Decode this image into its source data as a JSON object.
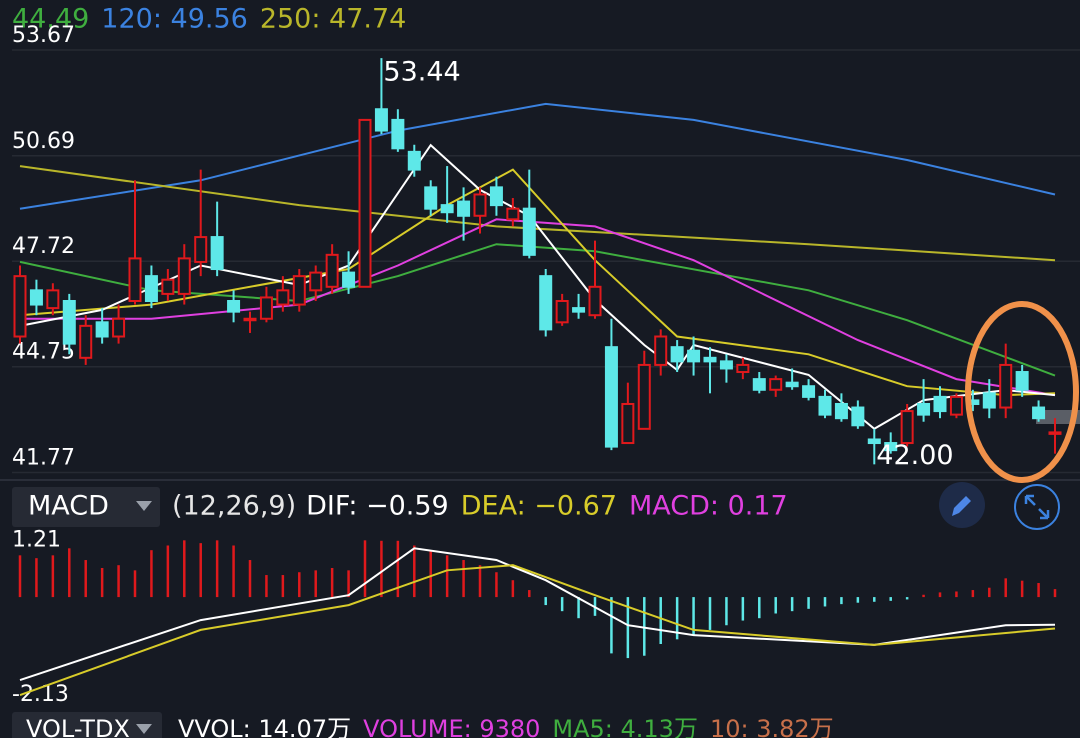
{
  "chart_data": [
    {
      "type": "candlestick",
      "legend": [
        {
          "label": "44.49",
          "color": "#3fae3f"
        },
        {
          "label": "120: 49.56",
          "color": "#3b82e0"
        },
        {
          "label": "250: 47.74",
          "color": "#b9b62a"
        }
      ],
      "open": [
        45.6,
        46.9,
        46.4,
        46.6,
        45.0,
        46.0,
        45.6,
        46.6,
        47.3,
        46.8,
        46.8,
        47.7,
        48.4,
        46.6,
        46.1,
        46.1,
        46.5,
        46.5,
        46.9,
        47.0,
        47.4,
        47.0,
        52.0,
        51.7,
        50.8,
        49.8,
        49.3,
        49.4,
        49.0,
        49.8,
        48.9,
        49.2,
        47.3,
        46.0,
        46.4,
        46.2,
        45.3,
        42.6,
        43.0,
        44.8,
        45.3,
        45.2,
        45.0,
        44.9,
        44.6,
        44.4,
        44.1,
        44.3,
        44.2,
        43.9,
        43.7,
        43.6,
        42.7,
        42.6,
        42.6,
        43.7,
        43.9,
        43.4,
        43.8,
        44.0,
        43.6,
        44.6,
        43.6,
        42.9
      ],
      "high": [
        47.6,
        47.2,
        47.1,
        46.8,
        46.2,
        46.4,
        46.5,
        50.0,
        47.6,
        47.5,
        48.2,
        50.3,
        49.4,
        46.9,
        46.3,
        47.0,
        47.3,
        47.5,
        47.6,
        48.2,
        48.0,
        51.7,
        53.44,
        52.0,
        51.0,
        50.0,
        50.4,
        49.8,
        49.8,
        50.1,
        49.5,
        50.3,
        47.5,
        46.8,
        46.8,
        48.3,
        46.1,
        44.3,
        45.2,
        45.8,
        45.5,
        45.6,
        45.3,
        45.1,
        45.0,
        44.6,
        44.5,
        44.7,
        44.4,
        44.1,
        44.0,
        43.8,
        43.0,
        42.9,
        43.7,
        44.4,
        44.2,
        44.0,
        44.1,
        44.4,
        45.4,
        44.8,
        43.8,
        43.3
      ],
      "low": [
        45.4,
        46.2,
        46.2,
        45.1,
        44.8,
        45.4,
        45.4,
        46.5,
        46.4,
        46.6,
        46.5,
        47.3,
        47.3,
        46.0,
        45.7,
        46.0,
        46.3,
        46.3,
        46.6,
        46.8,
        46.8,
        47.0,
        51.3,
        50.8,
        50.1,
        49.0,
        48.8,
        48.3,
        48.5,
        49.0,
        48.7,
        47.8,
        45.6,
        45.9,
        46.1,
        46.1,
        42.4,
        42.6,
        43.0,
        44.5,
        44.6,
        44.5,
        44.0,
        44.3,
        44.4,
        44.0,
        43.9,
        44.1,
        43.8,
        43.3,
        43.2,
        43.0,
        42.0,
        42.3,
        42.5,
        43.2,
        43.3,
        43.3,
        43.5,
        43.3,
        43.3,
        43.9,
        43.2,
        42.3
      ],
      "close": [
        47.3,
        46.5,
        46.9,
        45.4,
        45.9,
        45.6,
        46.1,
        47.8,
        46.6,
        47.2,
        47.8,
        48.4,
        47.5,
        46.3,
        46.1,
        46.7,
        46.9,
        47.3,
        47.4,
        47.9,
        47.0,
        51.7,
        51.4,
        50.9,
        50.3,
        49.2,
        49.1,
        49.0,
        49.6,
        49.3,
        49.2,
        47.9,
        45.8,
        46.6,
        46.3,
        47.0,
        42.5,
        43.7,
        44.8,
        45.6,
        44.9,
        44.9,
        44.9,
        44.7,
        44.8,
        44.1,
        44.4,
        44.2,
        43.9,
        43.4,
        43.3,
        43.1,
        42.6,
        42.4,
        43.5,
        43.4,
        43.5,
        43.9,
        43.7,
        43.6,
        44.8,
        44.1,
        43.3,
        42.9
      ],
      "up_color": "#e0191c",
      "down_color": "#5ee8e8",
      "ylim": [
        41.7,
        53.95
      ],
      "yticks": [
        53.67,
        50.69,
        47.72,
        44.75,
        41.77
      ],
      "grid": true,
      "lines": [
        {
          "color": "#3b82e0",
          "x": [
            0,
            11,
            23,
            32,
            41,
            54,
            63
          ],
          "values": [
            49.2,
            50.0,
            51.4,
            52.15,
            51.7,
            50.57,
            49.6
          ]
        },
        {
          "color": "#b9b62a",
          "x": [
            0,
            17,
            29,
            48,
            63
          ],
          "values": [
            50.4,
            49.3,
            48.7,
            48.2,
            47.75
          ]
        },
        {
          "color": "#3fae3f",
          "x": [
            0,
            8,
            17,
            23,
            29,
            35,
            48,
            54,
            63
          ],
          "values": [
            47.7,
            46.9,
            46.6,
            47.3,
            48.2,
            48.0,
            46.9,
            46.06,
            44.5
          ]
        },
        {
          "color": "#e040e0",
          "x": [
            0,
            8,
            17,
            23,
            29,
            35,
            41,
            51,
            57,
            63
          ],
          "values": [
            46.1,
            46.1,
            46.5,
            47.6,
            48.9,
            48.7,
            47.75,
            45.5,
            44.4,
            43.95
          ]
        },
        {
          "color": "#d8cc2a",
          "x": [
            0,
            8,
            20,
            26,
            30,
            35,
            40,
            48,
            54,
            60,
            63
          ],
          "values": [
            46.2,
            46.5,
            47.5,
            49.3,
            50.3,
            47.75,
            45.6,
            45.1,
            44.2,
            43.95,
            44.0
          ]
        },
        {
          "color": "#ffffff",
          "x": [
            0,
            5,
            11,
            17,
            20,
            25,
            28,
            31,
            35,
            38,
            40,
            41,
            48,
            52,
            55,
            60,
            63
          ],
          "values": [
            45.9,
            46.35,
            47.6,
            47.05,
            47.6,
            50.99,
            49.73,
            49.0,
            46.63,
            45.36,
            44.66,
            45.36,
            44.52,
            43.0,
            43.81,
            44.09,
            43.95
          ]
        }
      ],
      "annotations": [
        {
          "value": 53.44,
          "label": "53.44"
        },
        {
          "value": 42.0,
          "label": "42.00"
        }
      ]
    },
    {
      "type": "macd",
      "indicator": "MACD",
      "params": "(12,26,9)",
      "legend": [
        {
          "label": "DIF: −0.59",
          "color": "#ffffff"
        },
        {
          "label": "DEA: −0.67",
          "color": "#d8cc2a"
        },
        {
          "label": "MACD: 0.17",
          "color": "#e040e0"
        }
      ],
      "values": [
        0.89,
        0.83,
        0.89,
        1.04,
        0.79,
        0.62,
        0.68,
        0.57,
        1.0,
        1.1,
        1.21,
        1.15,
        1.21,
        1.1,
        0.79,
        0.47,
        0.47,
        0.53,
        0.57,
        0.62,
        0.57,
        1.21,
        1.2,
        1.2,
        1.1,
        1.0,
        0.89,
        0.79,
        0.68,
        0.53,
        0.36,
        0.15,
        -0.17,
        -0.3,
        -0.45,
        -0.4,
        -1.2,
        -1.3,
        -1.25,
        -1.0,
        -0.9,
        -0.8,
        -0.7,
        -0.6,
        -0.5,
        -0.45,
        -0.35,
        -0.3,
        -0.25,
        -0.2,
        -0.15,
        -0.12,
        -0.1,
        -0.08,
        -0.05,
        0.05,
        0.1,
        0.12,
        0.15,
        0.2,
        0.4,
        0.35,
        0.3,
        0.17
      ],
      "up_color": "#e0191c",
      "down_color": "#5ee8e8",
      "ylim": [
        -2.3,
        1.43
      ],
      "yticks": [
        1.21,
        -2.13
      ],
      "lines": [
        {
          "color": "#ffffff",
          "x": [
            0,
            11,
            20,
            24,
            29,
            32,
            37,
            41,
            52,
            60,
            63
          ],
          "values": [
            -1.77,
            -0.49,
            0.04,
            1.04,
            0.79,
            0.36,
            -0.6,
            -0.81,
            -1.02,
            -0.6,
            -0.59
          ]
        },
        {
          "color": "#d8cc2a",
          "x": [
            0,
            11,
            20,
            26,
            30,
            35,
            41,
            52,
            63
          ],
          "values": [
            -2.09,
            -0.7,
            -0.17,
            0.57,
            0.68,
            0.04,
            -0.7,
            -1.02,
            -0.67
          ]
        }
      ]
    },
    {
      "type": "volume",
      "indicator": "VOL-TDX",
      "legend": [
        {
          "label": "VVOL: 14.07万",
          "color": "#ffffff"
        },
        {
          "label": "VOLUME: 9380",
          "color": "#e040e0"
        },
        {
          "label": "MA5: 4.13万",
          "color": "#3fae3f"
        },
        {
          "label": "10: 3.82万",
          "color": "#c8704a"
        }
      ]
    }
  ]
}
